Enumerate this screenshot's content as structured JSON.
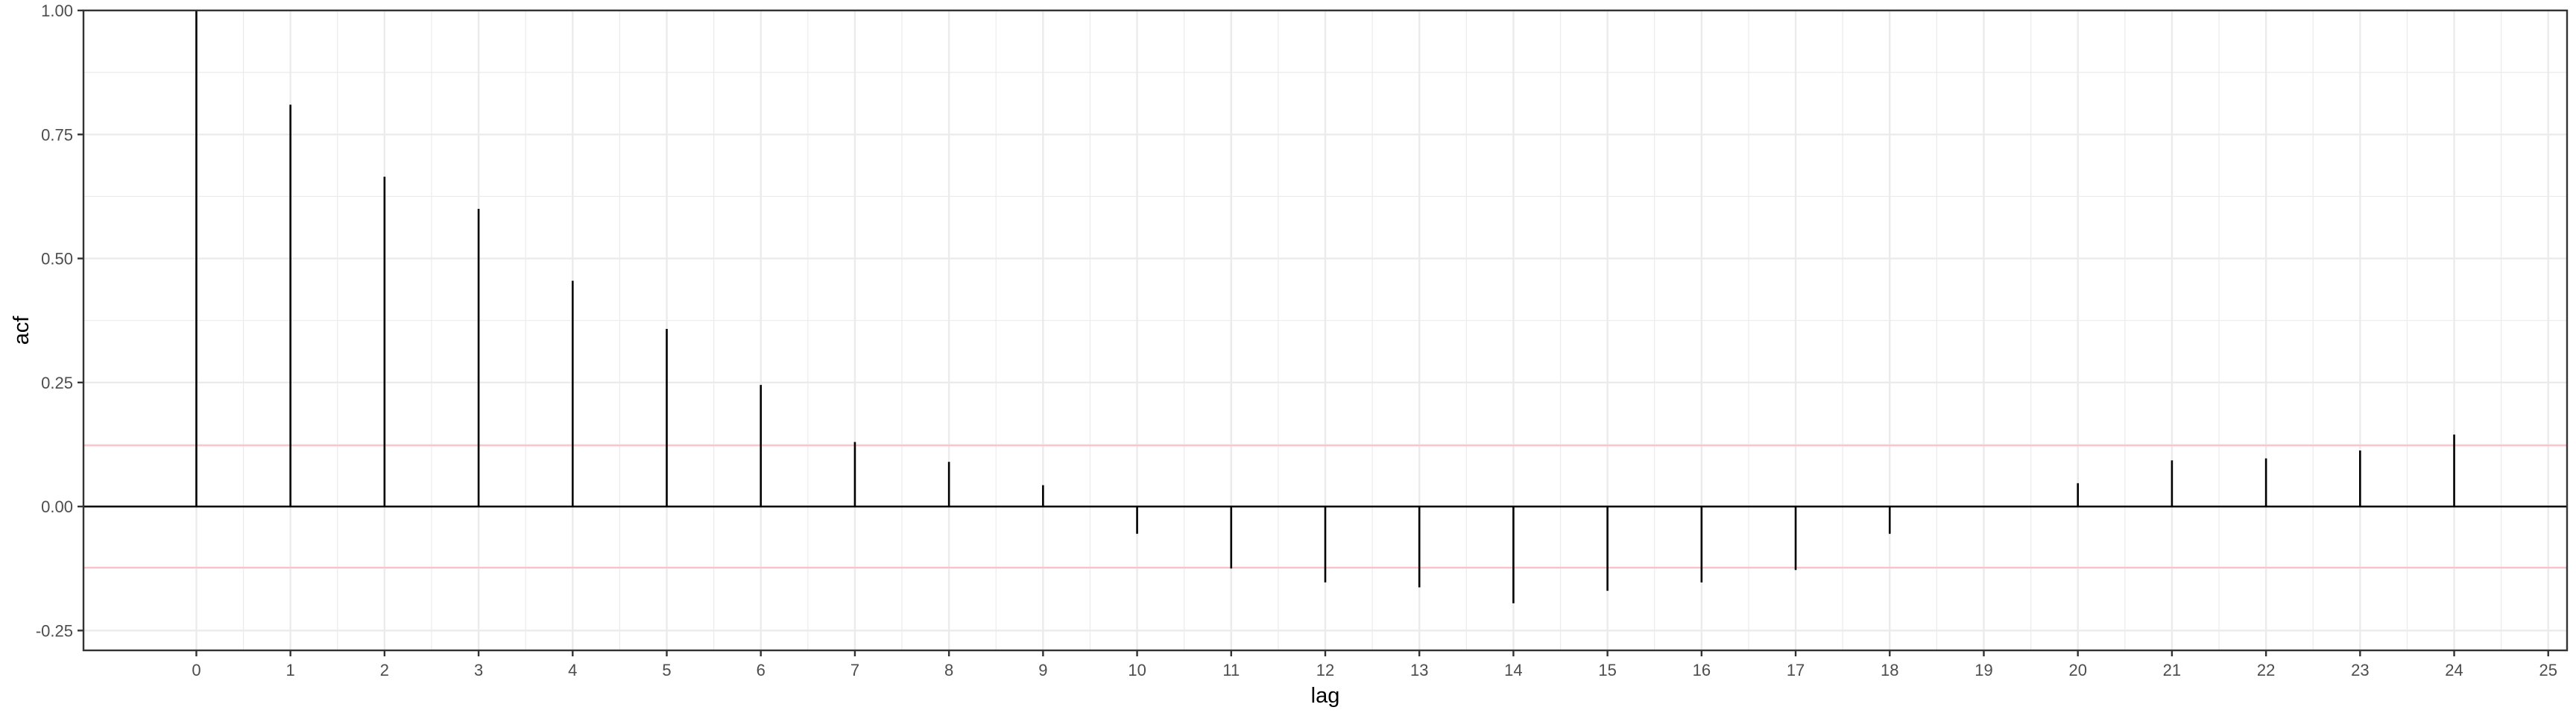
{
  "chart_data": {
    "type": "bar",
    "xlabel": "lag",
    "ylabel": "acf",
    "xlim": [
      -1.2,
      25.2
    ],
    "ylim": [
      -0.29,
      1.0
    ],
    "x_ticks": [
      0,
      1,
      2,
      3,
      4,
      5,
      6,
      7,
      8,
      9,
      10,
      11,
      12,
      13,
      14,
      15,
      16,
      17,
      18,
      19,
      20,
      21,
      22,
      23,
      24,
      25
    ],
    "y_ticks": [
      -0.25,
      0.0,
      0.25,
      0.5,
      0.75,
      1.0
    ],
    "y_tick_labels": [
      "-0.25",
      "0.00",
      "0.25",
      "0.50",
      "0.75",
      "1.00"
    ],
    "lags": [
      0,
      1,
      2,
      3,
      4,
      5,
      6,
      7,
      8,
      9,
      10,
      11,
      12,
      13,
      14,
      15,
      16,
      17,
      18,
      19,
      20,
      21,
      22,
      23,
      24
    ],
    "values": [
      1.0,
      0.81,
      0.665,
      0.6,
      0.455,
      0.358,
      0.245,
      0.13,
      0.09,
      0.043,
      -0.055,
      -0.125,
      -0.153,
      -0.163,
      -0.195,
      -0.17,
      -0.153,
      -0.128,
      -0.055,
      0.0,
      0.047,
      0.093,
      0.097,
      0.113,
      0.145
    ],
    "confidence_band": 0.123,
    "grid": true,
    "colors": {
      "bars": "#000000",
      "confidence": "#ffc0cb",
      "grid": "#ebebeb",
      "panel_border": "#333333",
      "zero_line": "#000000"
    }
  }
}
